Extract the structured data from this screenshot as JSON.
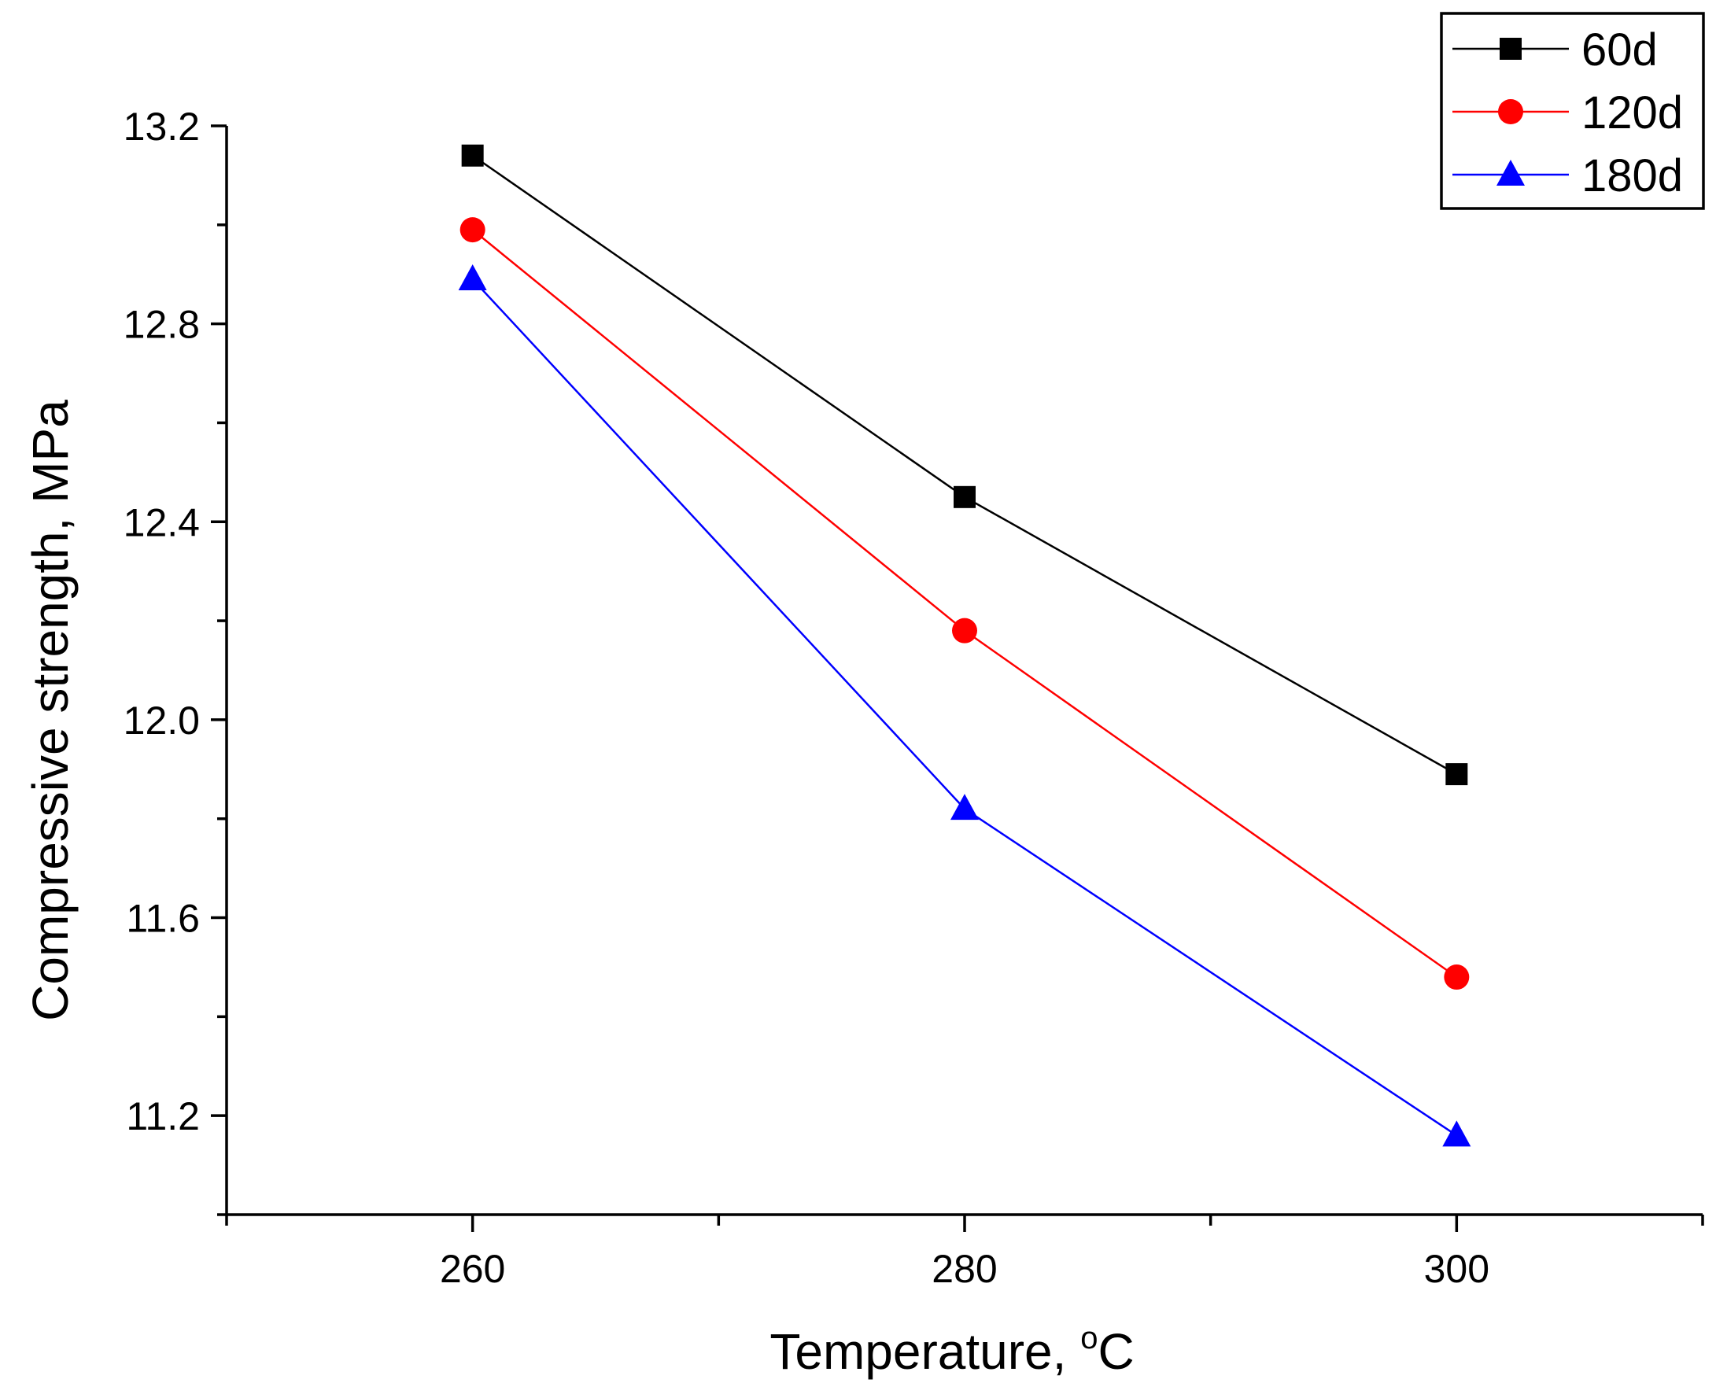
{
  "chart_data": {
    "type": "line",
    "title": "",
    "xlabel": "Temperature, ",
    "xlabel_superscript": "o",
    "xlabel_unit": "C",
    "ylabel": "Compressive strength, MPa",
    "xlim": [
      250,
      310
    ],
    "ylim": [
      11.0,
      13.2
    ],
    "x_ticks": [
      260,
      280,
      300
    ],
    "x_tick_labels": [
      "260",
      "280",
      "300"
    ],
    "x_minor_ticks": [
      250,
      270,
      290,
      310
    ],
    "y_ticks": [
      11.2,
      11.6,
      12.0,
      12.4,
      12.8,
      13.2
    ],
    "y_tick_labels": [
      "11.2",
      "11.6",
      "12.0",
      "12.4",
      "12.8",
      "13.2"
    ],
    "y_minor_ticks": [
      11.0,
      11.4,
      11.8,
      12.2,
      12.6,
      13.0
    ],
    "grid": false,
    "legend_position": "top-right",
    "x": [
      260,
      280,
      300
    ],
    "series": [
      {
        "name": "60d",
        "values": [
          13.14,
          12.45,
          11.89
        ],
        "color": "#000000",
        "marker": "square"
      },
      {
        "name": "120d",
        "values": [
          12.99,
          12.18,
          11.48
        ],
        "color": "#ff0000",
        "marker": "circle"
      },
      {
        "name": "180d",
        "values": [
          12.89,
          11.82,
          11.16
        ],
        "color": "#0000ff",
        "marker": "triangle"
      }
    ]
  }
}
